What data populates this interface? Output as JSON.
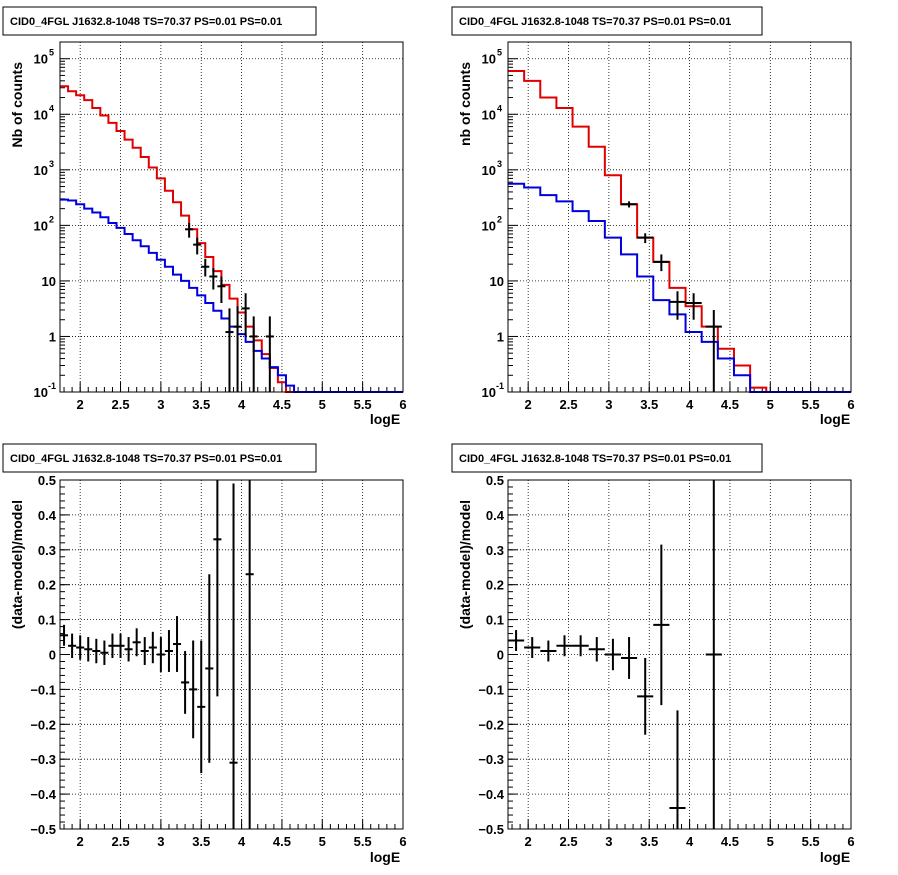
{
  "colors": {
    "data": "#000000",
    "model_total": "#e00000",
    "model_source": "#0000dd",
    "grid": "#000000",
    "frame": "#000000"
  },
  "chart_data": [
    {
      "type": "line",
      "id": "counts-left",
      "title": "CID0_4FGL J1632.8-1048 TS=70.37 PS=0.01 PS=0.01",
      "xlabel": "logE",
      "ylabel": "Nb of counts",
      "xscale": "linear",
      "yscale": "log",
      "xlim": [
        1.75,
        6
      ],
      "ylim": [
        0.1,
        200000
      ],
      "grid": true,
      "xticks": [
        2,
        2.5,
        3,
        3.5,
        4,
        4.5,
        5,
        5.5,
        6
      ],
      "xtick_labels": [
        "2",
        "2.5",
        "3",
        "3.5",
        "4",
        "4.5",
        "5",
        "5.5",
        "6"
      ],
      "yticks": [
        {
          "v": 0.1,
          "base": "10",
          "sup": "-1"
        },
        {
          "v": 1,
          "base": "1",
          "sup": ""
        },
        {
          "v": 10,
          "base": "10",
          "sup": ""
        },
        {
          "v": 100,
          "base": "10",
          "sup": "2"
        },
        {
          "v": 1000,
          "base": "10",
          "sup": "3"
        },
        {
          "v": 10000,
          "base": "10",
          "sup": "4"
        },
        {
          "v": 100000,
          "base": "10",
          "sup": "5"
        }
      ],
      "series": [
        {
          "role": "model_total",
          "style": "step",
          "bin_width": 0.1,
          "x": [
            1.8,
            1.9,
            2.0,
            2.1,
            2.2,
            2.3,
            2.4,
            2.5,
            2.6,
            2.7,
            2.8,
            2.9,
            3.0,
            3.1,
            3.2,
            3.3,
            3.4,
            3.5,
            3.6,
            3.7,
            3.8,
            3.9,
            4.0,
            4.1,
            4.2,
            4.3,
            4.4,
            4.5,
            4.6,
            4.7,
            4.8,
            4.9,
            5.0,
            5.1,
            5.2,
            5.3,
            5.4,
            5.5,
            5.6,
            5.7,
            5.8,
            5.9
          ],
          "y": [
            32000,
            26000,
            22000,
            18000,
            13000,
            9500,
            7000,
            5000,
            3500,
            2500,
            1700,
            1100,
            700,
            420,
            260,
            150,
            85,
            48,
            27,
            15,
            8.5,
            4.8,
            2.7,
            1.5,
            0.85,
            0.48,
            0.27,
            0.15,
            0.1,
            0.1,
            0.1,
            0.1,
            0.1,
            0.1,
            0.1,
            0.1,
            0.1,
            0.1,
            0.1,
            0.1,
            0.1,
            0.1
          ]
        },
        {
          "role": "model_source",
          "style": "step",
          "bin_width": 0.1,
          "x": [
            1.8,
            1.9,
            2.0,
            2.1,
            2.2,
            2.3,
            2.4,
            2.5,
            2.6,
            2.7,
            2.8,
            2.9,
            3.0,
            3.1,
            3.2,
            3.3,
            3.4,
            3.5,
            3.6,
            3.7,
            3.8,
            3.9,
            4.0,
            4.1,
            4.2,
            4.3,
            4.4,
            4.5,
            4.6,
            4.7,
            4.8,
            4.9,
            5.0,
            5.1,
            5.2,
            5.3,
            5.4,
            5.5,
            5.6,
            5.7,
            5.8,
            5.9
          ],
          "y": [
            290,
            280,
            240,
            200,
            170,
            140,
            110,
            90,
            70,
            54,
            42,
            32,
            24,
            18,
            13,
            10,
            7.5,
            5.5,
            4.0,
            2.9,
            2.1,
            1.5,
            1.1,
            0.8,
            0.55,
            0.4,
            0.28,
            0.2,
            0.13,
            0.1,
            0.1,
            0.1,
            0.1,
            0.1,
            0.1,
            0.1,
            0.1,
            0.1,
            0.1,
            0.1,
            0.1,
            0.1
          ]
        },
        {
          "role": "data",
          "style": "errorbars",
          "x": [
            3.35,
            3.45,
            3.55,
            3.65,
            3.75,
            3.85,
            3.95,
            4.05,
            4.15,
            4.35
          ],
          "xerr": 0.05,
          "y": [
            85,
            45,
            18,
            12,
            8,
            1.2,
            1.5,
            3.2,
            1.0,
            1.0
          ],
          "ylow": [
            60,
            30,
            12,
            7,
            4,
            0.1,
            0.1,
            1,
            0.1,
            0.1
          ],
          "yhigh": [
            110,
            60,
            25,
            17,
            12,
            3.2,
            3.5,
            6,
            2.3,
            2.3
          ]
        }
      ]
    },
    {
      "type": "line",
      "id": "counts-right",
      "title": "CID0_4FGL J1632.8-1048 TS=70.37 PS=0.01 PS=0.01",
      "xlabel": "logE",
      "ylabel": "nb of counts",
      "xscale": "linear",
      "yscale": "log",
      "xlim": [
        1.75,
        6
      ],
      "ylim": [
        0.1,
        200000
      ],
      "grid": true,
      "xticks": [
        2,
        2.5,
        3,
        3.5,
        4,
        4.5,
        5,
        5.5,
        6
      ],
      "xtick_labels": [
        "2",
        "2.5",
        "3",
        "3.5",
        "4",
        "4.5",
        "5",
        "5.5",
        "6"
      ],
      "yticks": [
        {
          "v": 0.1,
          "base": "10",
          "sup": "-1"
        },
        {
          "v": 1,
          "base": "1",
          "sup": ""
        },
        {
          "v": 10,
          "base": "10",
          "sup": ""
        },
        {
          "v": 100,
          "base": "10",
          "sup": "2"
        },
        {
          "v": 1000,
          "base": "10",
          "sup": "3"
        },
        {
          "v": 10000,
          "base": "10",
          "sup": "4"
        },
        {
          "v": 100000,
          "base": "10",
          "sup": "5"
        }
      ],
      "series": [
        {
          "role": "model_total",
          "style": "step",
          "bin_width": 0.2,
          "x": [
            1.85,
            2.05,
            2.25,
            2.45,
            2.65,
            2.85,
            3.05,
            3.25,
            3.45,
            3.65,
            3.85,
            4.05,
            4.25,
            4.45,
            4.65,
            4.85,
            5.05,
            5.25,
            5.45,
            5.65,
            5.85
          ],
          "y": [
            60000,
            40000,
            20000,
            13000,
            6000,
            2600,
            800,
            240,
            60,
            22,
            7.5,
            3.5,
            1.5,
            0.6,
            0.3,
            0.12,
            0.1,
            0.1,
            0.1,
            0.1,
            0.1
          ]
        },
        {
          "role": "model_source",
          "style": "step",
          "bin_width": 0.2,
          "x": [
            1.85,
            2.05,
            2.25,
            2.45,
            2.65,
            2.85,
            3.05,
            3.25,
            3.45,
            3.65,
            3.85,
            4.05,
            4.25,
            4.45,
            4.65,
            4.85,
            5.05,
            5.25,
            5.45,
            5.65,
            5.85
          ],
          "y": [
            560,
            480,
            350,
            270,
            180,
            120,
            60,
            30,
            12,
            4.5,
            2.5,
            1.2,
            0.8,
            0.4,
            0.2,
            0.1,
            0.1,
            0.1,
            0.1,
            0.1,
            0.1
          ]
        },
        {
          "role": "data",
          "style": "errorbars",
          "x": [
            3.25,
            3.45,
            3.65,
            3.85,
            4.05,
            4.3
          ],
          "xerr": 0.1,
          "y": [
            240,
            60,
            22,
            4.2,
            4,
            1.5
          ],
          "ylow": [
            210,
            48,
            15,
            2,
            2,
            0.1
          ],
          "yhigh": [
            270,
            72,
            30,
            6.5,
            6,
            3
          ]
        }
      ]
    },
    {
      "type": "scatter",
      "id": "residuals-left",
      "title": "CID0_4FGL J1632.8-1048 TS=70.37 PS=0.01 PS=0.01",
      "xlabel": "logE",
      "ylabel": "(data-model)/model",
      "xscale": "linear",
      "yscale": "linear",
      "xlim": [
        1.75,
        6
      ],
      "ylim": [
        -0.5,
        0.5
      ],
      "grid": true,
      "xticks": [
        2,
        2.5,
        3,
        3.5,
        4,
        4.5,
        5,
        5.5,
        6
      ],
      "xtick_labels": [
        "2",
        "2.5",
        "3",
        "3.5",
        "4",
        "4.5",
        "5",
        "5.5",
        "6"
      ],
      "yticks": [
        {
          "v": -0.5,
          "base": "−0.5",
          "sup": ""
        },
        {
          "v": -0.4,
          "base": "−0.4",
          "sup": ""
        },
        {
          "v": -0.3,
          "base": "−0.3",
          "sup": ""
        },
        {
          "v": -0.2,
          "base": "−0.2",
          "sup": ""
        },
        {
          "v": -0.1,
          "base": "−0.1",
          "sup": ""
        },
        {
          "v": 0,
          "base": "0",
          "sup": ""
        },
        {
          "v": 0.1,
          "base": "0.1",
          "sup": ""
        },
        {
          "v": 0.2,
          "base": "0.2",
          "sup": ""
        },
        {
          "v": 0.3,
          "base": "0.3",
          "sup": ""
        },
        {
          "v": 0.4,
          "base": "0.4",
          "sup": ""
        },
        {
          "v": 0.5,
          "base": "0.5",
          "sup": ""
        }
      ],
      "series": [
        {
          "role": "data",
          "style": "errorbars",
          "x": [
            1.8,
            1.9,
            2.0,
            2.1,
            2.2,
            2.3,
            2.4,
            2.5,
            2.6,
            2.7,
            2.8,
            2.9,
            3.0,
            3.1,
            3.2,
            3.3,
            3.4,
            3.5,
            3.6,
            3.7,
            3.8,
            3.9,
            4.0,
            4.1
          ],
          "xerr": 0.05,
          "y": [
            0.055,
            0.025,
            0.02,
            0.015,
            0.01,
            0.005,
            0.025,
            0.025,
            0.015,
            0.035,
            0.01,
            0.02,
            0.0,
            0.01,
            0.03,
            -0.08,
            -0.1,
            -0.15,
            -0.04,
            0.33,
            null,
            -0.31,
            null,
            0.23
          ],
          "yerr": [
            0.03,
            0.035,
            0.035,
            0.035,
            0.035,
            0.035,
            0.035,
            0.035,
            0.035,
            0.04,
            0.04,
            0.045,
            0.05,
            0.06,
            0.08,
            0.09,
            0.14,
            0.19,
            0.27,
            0.45,
            null,
            0.8,
            null,
            1.0
          ]
        }
      ]
    },
    {
      "type": "scatter",
      "id": "residuals-right",
      "title": "CID0_4FGL J1632.8-1048 TS=70.37 PS=0.01 PS=0.01",
      "xlabel": "logE",
      "ylabel": "(data-model)/model",
      "xscale": "linear",
      "yscale": "linear",
      "xlim": [
        1.75,
        6
      ],
      "ylim": [
        -0.5,
        0.5
      ],
      "grid": true,
      "xticks": [
        2,
        2.5,
        3,
        3.5,
        4,
        4.5,
        5,
        5.5,
        6
      ],
      "xtick_labels": [
        "2",
        "2.5",
        "3",
        "3.5",
        "4",
        "4.5",
        "5",
        "5.5",
        "6"
      ],
      "yticks": [
        {
          "v": -0.5,
          "base": "−0.5",
          "sup": ""
        },
        {
          "v": -0.4,
          "base": "−0.4",
          "sup": ""
        },
        {
          "v": -0.3,
          "base": "−0.3",
          "sup": ""
        },
        {
          "v": -0.2,
          "base": "−0.2",
          "sup": ""
        },
        {
          "v": -0.1,
          "base": "−0.1",
          "sup": ""
        },
        {
          "v": 0,
          "base": "0",
          "sup": ""
        },
        {
          "v": 0.1,
          "base": "0.1",
          "sup": ""
        },
        {
          "v": 0.2,
          "base": "0.2",
          "sup": ""
        },
        {
          "v": 0.3,
          "base": "0.3",
          "sup": ""
        },
        {
          "v": 0.4,
          "base": "0.4",
          "sup": ""
        },
        {
          "v": 0.5,
          "base": "0.5",
          "sup": ""
        }
      ],
      "series": [
        {
          "role": "data",
          "style": "errorbars",
          "x": [
            1.85,
            2.05,
            2.25,
            2.45,
            2.65,
            2.85,
            3.05,
            3.25,
            3.45,
            3.65,
            3.85,
            4.3
          ],
          "xerr": 0.1,
          "y": [
            0.04,
            0.02,
            0.01,
            0.025,
            0.025,
            0.015,
            0.0,
            -0.01,
            -0.12,
            0.085,
            -0.44,
            0.0
          ],
          "yerr": [
            0.03,
            0.03,
            0.03,
            0.03,
            0.03,
            0.035,
            0.045,
            0.06,
            0.11,
            0.23,
            0.28,
            1.0
          ]
        }
      ]
    }
  ]
}
